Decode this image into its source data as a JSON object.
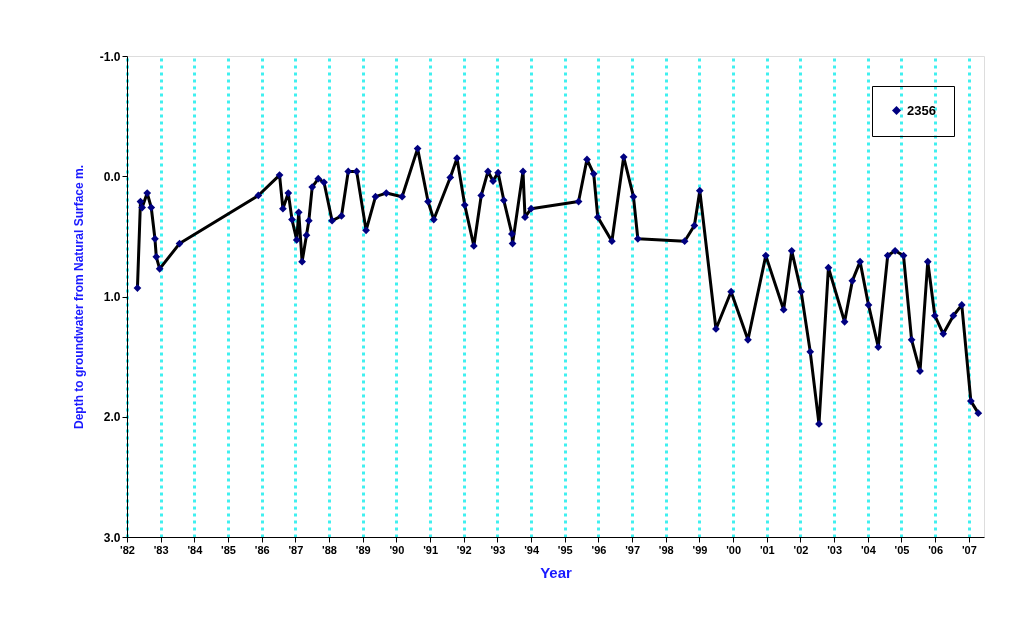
{
  "chart_data": {
    "type": "line",
    "xlabel": "Year",
    "ylabel": "Depth to groundwater from Natural Surface m.",
    "series": [
      {
        "name": "2356",
        "color": "#000080",
        "x": [
          1982.31,
          1982.4,
          1982.45,
          1982.6,
          1982.72,
          1982.83,
          1982.87,
          1982.97,
          1983.56,
          1985.9,
          1986.53,
          1986.63,
          1986.79,
          1986.9,
          1987.04,
          1987.1,
          1987.2,
          1987.33,
          1987.4,
          1987.5,
          1987.68,
          1987.85,
          1988.09,
          1988.37,
          1988.57,
          1988.82,
          1989.1,
          1989.38,
          1989.7,
          1990.17,
          1990.63,
          1990.94,
          1991.11,
          1991.6,
          1991.8,
          1992.03,
          1992.3,
          1992.52,
          1992.72,
          1992.87,
          1993.02,
          1993.19,
          1993.43,
          1993.45,
          1993.76,
          1993.82,
          1994.0,
          1995.41,
          1995.66,
          1995.86,
          1995.98,
          1996.4,
          1996.75,
          1997.04,
          1997.17,
          1998.56,
          1998.85,
          1999.01,
          1999.49,
          1999.94,
          2000.44,
          2000.97,
          2001.5,
          2001.74,
          2002.02,
          2002.29,
          2002.55,
          2002.83,
          2003.31,
          2003.54,
          2003.77,
          2004.02,
          2004.31,
          2004.59,
          2004.81,
          2005.06,
          2005.3,
          2005.55,
          2005.78,
          2005.99,
          2006.24,
          2006.54,
          2006.79,
          2007.06,
          2007.28
        ],
        "values": [
          0.93,
          0.21,
          0.26,
          0.14,
          0.26,
          0.52,
          0.67,
          0.77,
          0.56,
          0.16,
          -0.01,
          0.27,
          0.14,
          0.36,
          0.53,
          0.3,
          0.71,
          0.49,
          0.37,
          0.09,
          0.02,
          0.05,
          0.37,
          0.33,
          -0.04,
          -0.04,
          0.45,
          0.17,
          0.14,
          0.17,
          -0.23,
          0.21,
          0.36,
          0.01,
          -0.15,
          0.24,
          0.58,
          0.16,
          -0.04,
          0.04,
          -0.03,
          0.2,
          0.48,
          0.56,
          -0.04,
          0.34,
          0.27,
          0.21,
          -0.14,
          -0.02,
          0.34,
          0.54,
          -0.16,
          0.17,
          0.52,
          0.54,
          0.41,
          0.12,
          1.27,
          0.96,
          1.36,
          0.66,
          1.11,
          0.62,
          0.96,
          1.46,
          2.06,
          0.76,
          1.21,
          0.87,
          0.71,
          1.07,
          1.42,
          0.66,
          0.62,
          0.66,
          1.36,
          1.62,
          0.71,
          1.16,
          1.31,
          1.16,
          1.07,
          1.87,
          1.97
        ]
      }
    ],
    "xlim": [
      1982,
      2007.45
    ],
    "xticks": [
      {
        "value": 1982,
        "label": "'82"
      },
      {
        "value": 1983,
        "label": "'83"
      },
      {
        "value": 1984,
        "label": "'84"
      },
      {
        "value": 1985,
        "label": "'85"
      },
      {
        "value": 1986,
        "label": "'86"
      },
      {
        "value": 1987,
        "label": "'87"
      },
      {
        "value": 1988,
        "label": "'88"
      },
      {
        "value": 1989,
        "label": "'89"
      },
      {
        "value": 1990,
        "label": "'90"
      },
      {
        "value": 1991,
        "label": "'91"
      },
      {
        "value": 1992,
        "label": "'92"
      },
      {
        "value": 1993,
        "label": "'93"
      },
      {
        "value": 1994,
        "label": "'94"
      },
      {
        "value": 1995,
        "label": "'95"
      },
      {
        "value": 1996,
        "label": "'96"
      },
      {
        "value": 1997,
        "label": "'97"
      },
      {
        "value": 1998,
        "label": "'98"
      },
      {
        "value": 1999,
        "label": "'99"
      },
      {
        "value": 2000,
        "label": "'00"
      },
      {
        "value": 2001,
        "label": "'01"
      },
      {
        "value": 2002,
        "label": "'02"
      },
      {
        "value": 2003,
        "label": "'03"
      },
      {
        "value": 2004,
        "label": "'04"
      },
      {
        "value": 2005,
        "label": "'05"
      },
      {
        "value": 2006,
        "label": "'06"
      },
      {
        "value": 2007,
        "label": "'07"
      }
    ],
    "ylim": [
      3.0,
      -1.0
    ],
    "yticks": [
      {
        "value": -1,
        "label": "-1.0"
      },
      {
        "value": 0,
        "label": "0.0"
      },
      {
        "value": 1,
        "label": "1.0"
      },
      {
        "value": 2,
        "label": "2.0"
      },
      {
        "value": 3,
        "label": "3.0"
      }
    ],
    "grid": "x",
    "legend": "top right",
    "marker": "diamond",
    "line_style": "solid"
  }
}
